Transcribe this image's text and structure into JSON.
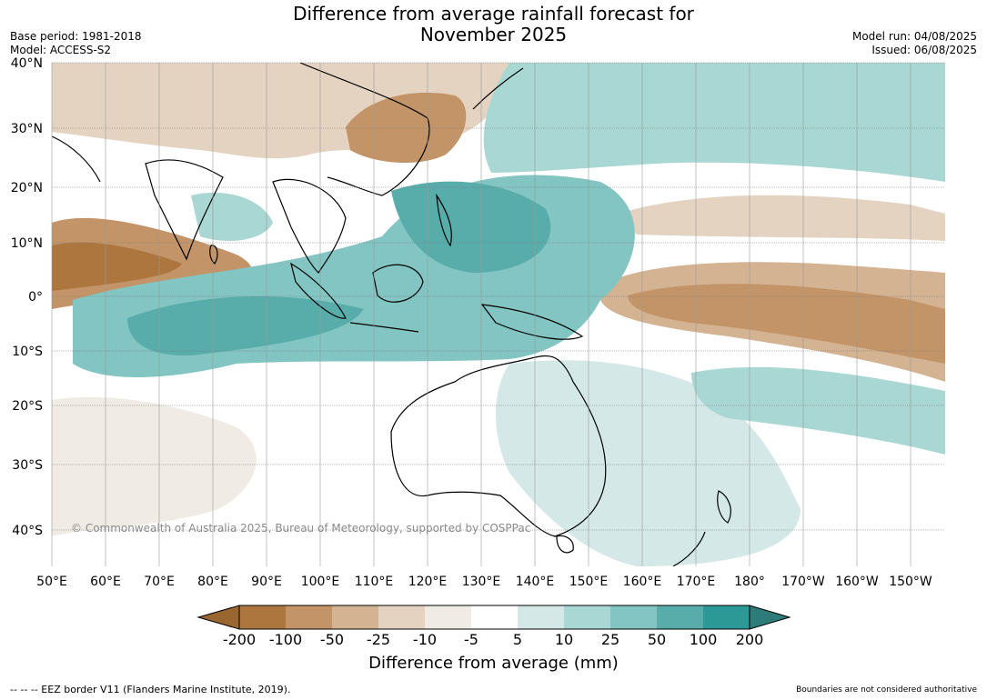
{
  "title_line1": "Difference from average rainfall forecast for",
  "title_line2": "November 2025",
  "base_period": "Base period: 1981-2018",
  "model": "Model: ACCESS-S2",
  "model_run": "Model run: 04/08/2025",
  "issued": "Issued: 06/08/2025",
  "lat_labels": [
    "40°N",
    "30°N",
    "20°N",
    "10°N",
    "0°",
    "10°S",
    "20°S",
    "30°S",
    "40°S"
  ],
  "lon_labels": [
    "50°E",
    "60°E",
    "70°E",
    "80°E",
    "90°E",
    "100°E",
    "110°E",
    "120°E",
    "130°E",
    "140°E",
    "150°E",
    "160°E",
    "170°E",
    "180°",
    "170°W",
    "160°W",
    "150°W"
  ],
  "copyright": "© Commonwealth of Australia 2025, Bureau of Meteorology, supported by COSPPac",
  "colorbar": {
    "ticks": [
      "-200",
      "-100",
      "-50",
      "-25",
      "-10",
      "-5",
      "5",
      "10",
      "25",
      "50",
      "100",
      "200"
    ],
    "colors": [
      "#9a6630",
      "#ad763f",
      "#c29468",
      "#d4b393",
      "#e5d3c2",
      "#f1ebe5",
      "#ffffff",
      "#d4e9e7",
      "#a9d7d4",
      "#82c5c2",
      "#58adab",
      "#2d9996",
      "#2e7c7a"
    ],
    "title": "Difference from average (mm)"
  },
  "footer_left": "--  --  -- EEZ border V11 (Flanders Marine Institute, 2019).",
  "footer_right": "Boundaries are not considered authoritative"
}
